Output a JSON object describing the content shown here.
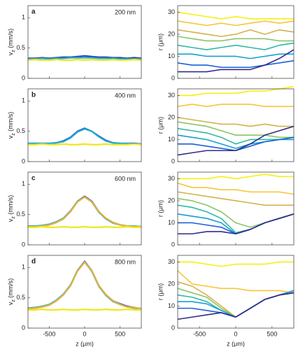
{
  "chart_data": [
    {
      "type": "line",
      "label": "a",
      "annotation": "200 nm",
      "ylabel": {
        "main": "v",
        "sub": "z",
        "rest": " (mm/s)"
      },
      "xlim": [
        -800,
        800
      ],
      "xticks": [
        -500,
        0,
        500
      ],
      "ylim": [
        0,
        1.2
      ],
      "yticks": [
        0,
        0.5,
        1
      ],
      "x": [
        -800,
        -700,
        -600,
        -500,
        -400,
        -300,
        -200,
        -100,
        0,
        100,
        200,
        300,
        400,
        500,
        600,
        700,
        800
      ],
      "series": [
        {
          "color": "#2a3fb8",
          "values": [
            0.33,
            0.33,
            0.34,
            0.33,
            0.34,
            0.35,
            0.35,
            0.36,
            0.37,
            0.36,
            0.35,
            0.35,
            0.34,
            0.34,
            0.33,
            0.34,
            0.33
          ]
        },
        {
          "color": "#1eaad2",
          "values": [
            0.32,
            0.32,
            0.33,
            0.32,
            0.33,
            0.33,
            0.34,
            0.34,
            0.34,
            0.34,
            0.33,
            0.33,
            0.33,
            0.32,
            0.32,
            0.32,
            0.32
          ]
        },
        {
          "color": "#f0e81a",
          "values": [
            0.3,
            0.31,
            0.3,
            0.3,
            0.31,
            0.3,
            0.3,
            0.31,
            0.3,
            0.31,
            0.3,
            0.3,
            0.31,
            0.3,
            0.3,
            0.31,
            0.3
          ]
        }
      ]
    },
    {
      "type": "line",
      "ylabel": "r (μm)",
      "xlim": [
        -800,
        800
      ],
      "xticks": [
        -500,
        0,
        500
      ],
      "ylim": [
        0,
        33
      ],
      "yticks": [
        0,
        10,
        20,
        30
      ],
      "x": [
        -800,
        -600,
        -400,
        -200,
        0,
        200,
        400,
        600,
        800
      ],
      "series": [
        {
          "color": "#f5f010",
          "values": [
            30,
            29,
            28,
            27,
            28,
            27,
            27,
            27,
            27
          ]
        },
        {
          "color": "#f7c53a",
          "values": [
            26,
            25,
            24,
            25,
            24,
            25,
            26,
            25,
            26
          ]
        },
        {
          "color": "#d3b34a",
          "values": [
            22,
            21,
            20,
            19,
            20,
            22,
            20,
            22,
            21
          ]
        },
        {
          "color": "#8cc46a",
          "values": [
            19,
            18,
            17,
            17,
            18,
            18,
            18,
            17,
            17
          ]
        },
        {
          "color": "#2fb9a6",
          "values": [
            15,
            14,
            13,
            14,
            15,
            14,
            13,
            15,
            16
          ]
        },
        {
          "color": "#14a0d4",
          "values": [
            11,
            11,
            10,
            10,
            10,
            9,
            10,
            11,
            11
          ]
        },
        {
          "color": "#1a62d8",
          "values": [
            7,
            6,
            6,
            5,
            5,
            5,
            6,
            7,
            8
          ]
        },
        {
          "color": "#352a87",
          "values": [
            3,
            3,
            3,
            4,
            4,
            4,
            6,
            9,
            13
          ]
        }
      ]
    },
    {
      "type": "line",
      "label": "b",
      "annotation": "400 nm",
      "ylabel": {
        "main": "v",
        "sub": "z",
        "rest": " (mm/s)"
      },
      "xlim": [
        -800,
        800
      ],
      "xticks": [
        -500,
        0,
        500
      ],
      "ylim": [
        0,
        1.2
      ],
      "yticks": [
        0,
        0.5,
        1
      ],
      "x": [
        -800,
        -700,
        -600,
        -500,
        -400,
        -300,
        -200,
        -100,
        0,
        100,
        200,
        300,
        400,
        500,
        600,
        700,
        800
      ],
      "series": [
        {
          "color": "#2a3fb8",
          "values": [
            0.3,
            0.3,
            0.3,
            0.3,
            0.31,
            0.34,
            0.4,
            0.5,
            0.55,
            0.5,
            0.42,
            0.35,
            0.31,
            0.3,
            0.3,
            0.3,
            0.29
          ]
        },
        {
          "color": "#1eaad2",
          "values": [
            0.3,
            0.3,
            0.3,
            0.3,
            0.31,
            0.33,
            0.39,
            0.49,
            0.54,
            0.5,
            0.41,
            0.34,
            0.31,
            0.3,
            0.3,
            0.29,
            0.29
          ]
        },
        {
          "color": "#f0e81a",
          "values": [
            0.28,
            0.28,
            0.29,
            0.28,
            0.28,
            0.29,
            0.28,
            0.28,
            0.29,
            0.28,
            0.28,
            0.29,
            0.28,
            0.28,
            0.28,
            0.29,
            0.28
          ]
        }
      ]
    },
    {
      "type": "line",
      "ylabel": "r (μm)",
      "xlim": [
        -800,
        800
      ],
      "xticks": [
        -500,
        0,
        500
      ],
      "ylim": [
        0,
        33
      ],
      "yticks": [
        0,
        10,
        20,
        30
      ],
      "x": [
        -800,
        -600,
        -400,
        -200,
        0,
        200,
        400,
        600,
        800
      ],
      "series": [
        {
          "color": "#f5f010",
          "values": [
            30,
            30,
            31,
            31,
            31,
            32,
            32,
            33,
            34
          ]
        },
        {
          "color": "#f7c53a",
          "values": [
            25,
            26,
            25,
            26,
            26,
            26,
            25,
            25,
            25
          ]
        },
        {
          "color": "#d3b34a",
          "values": [
            20,
            19,
            18,
            17,
            17,
            16,
            17,
            16,
            16
          ]
        },
        {
          "color": "#8cc46a",
          "values": [
            18,
            17,
            16,
            14,
            12,
            12,
            12,
            11,
            11
          ]
        },
        {
          "color": "#2fb9a6",
          "values": [
            15,
            14,
            13,
            11,
            8,
            10,
            10,
            10,
            11
          ]
        },
        {
          "color": "#14a0d4",
          "values": [
            12,
            11,
            10,
            8,
            6,
            8,
            9,
            10,
            10
          ]
        },
        {
          "color": "#1a62d8",
          "values": [
            8,
            8,
            7,
            6,
            5,
            7,
            9,
            10,
            11
          ]
        },
        {
          "color": "#352a87",
          "values": [
            3,
            4,
            5,
            5,
            5,
            8,
            12,
            14,
            16
          ]
        }
      ]
    },
    {
      "type": "line",
      "label": "c",
      "annotation": "600 nm",
      "ylabel": {
        "main": "v",
        "sub": "z",
        "rest": " (mm/s)"
      },
      "xlim": [
        -800,
        800
      ],
      "xticks": [
        -500,
        0,
        500
      ],
      "ylim": [
        0,
        1.2
      ],
      "yticks": [
        0,
        0.5,
        1
      ],
      "x": [
        -800,
        -700,
        -600,
        -500,
        -400,
        -300,
        -200,
        -100,
        0,
        100,
        200,
        300,
        400,
        500,
        600,
        700,
        800
      ],
      "series": [
        {
          "color": "#2a3fb8",
          "values": [
            0.3,
            0.31,
            0.31,
            0.33,
            0.37,
            0.43,
            0.55,
            0.72,
            0.8,
            0.72,
            0.55,
            0.43,
            0.37,
            0.33,
            0.31,
            0.3,
            0.3
          ]
        },
        {
          "color": "#1eaad2",
          "values": [
            0.31,
            0.31,
            0.32,
            0.34,
            0.38,
            0.44,
            0.56,
            0.72,
            0.79,
            0.71,
            0.54,
            0.43,
            0.36,
            0.33,
            0.31,
            0.31,
            0.3
          ]
        },
        {
          "color": "#e8b23a",
          "values": [
            0.3,
            0.3,
            0.31,
            0.33,
            0.37,
            0.43,
            0.55,
            0.71,
            0.79,
            0.71,
            0.55,
            0.44,
            0.37,
            0.33,
            0.31,
            0.3,
            0.3
          ]
        },
        {
          "color": "#f0e81a",
          "values": [
            0.29,
            0.29,
            0.3,
            0.29,
            0.29,
            0.3,
            0.29,
            0.29,
            0.3,
            0.29,
            0.29,
            0.3,
            0.29,
            0.29,
            0.3,
            0.29,
            0.29
          ]
        }
      ]
    },
    {
      "type": "line",
      "ylabel": "r (μm)",
      "xlim": [
        -800,
        800
      ],
      "xticks": [
        -500,
        0,
        500
      ],
      "ylim": [
        0,
        33
      ],
      "yticks": [
        0,
        10,
        20,
        30
      ],
      "x": [
        -800,
        -600,
        -400,
        -200,
        0,
        200,
        400,
        600,
        800
      ],
      "series": [
        {
          "color": "#f5f010",
          "values": [
            30,
            30,
            30,
            31,
            30,
            31,
            32,
            31,
            31
          ]
        },
        {
          "color": "#f7c53a",
          "values": [
            28,
            26,
            26,
            25,
            25,
            24,
            24,
            24,
            23
          ]
        },
        {
          "color": "#d3b34a",
          "values": [
            24,
            23,
            22,
            21,
            20,
            19,
            18,
            18,
            18
          ]
        },
        {
          "color": "#8cc46a",
          "values": [
            21,
            20,
            18,
            15,
            10,
            8,
            10,
            12,
            14
          ]
        },
        {
          "color": "#2fb9a6",
          "values": [
            18,
            17,
            15,
            12,
            5.5,
            7,
            10,
            12,
            14
          ]
        },
        {
          "color": "#14a0d4",
          "values": [
            14,
            13,
            12,
            10,
            5,
            7,
            10,
            12,
            14
          ]
        },
        {
          "color": "#1a62d8",
          "values": [
            10,
            10,
            9,
            8,
            5,
            7,
            10,
            12,
            14
          ]
        },
        {
          "color": "#352a87",
          "values": [
            5,
            5,
            6,
            6,
            5,
            7,
            10,
            12,
            14
          ]
        }
      ]
    },
    {
      "type": "line",
      "label": "d",
      "annotation": "800 nm",
      "ylabel": {
        "main": "v",
        "sub": "z",
        "rest": " (mm/s)"
      },
      "xlabel": "z (μm)",
      "xlim": [
        -800,
        800
      ],
      "xticks": [
        -500,
        0,
        500
      ],
      "ylim": [
        0,
        1.2
      ],
      "yticks": [
        0,
        0.5,
        1
      ],
      "x": [
        -800,
        -700,
        -600,
        -500,
        -400,
        -300,
        -200,
        -100,
        0,
        100,
        200,
        300,
        400,
        500,
        600,
        700,
        800
      ],
      "series": [
        {
          "color": "#2a3fb8",
          "values": [
            0.32,
            0.33,
            0.35,
            0.38,
            0.45,
            0.55,
            0.7,
            0.95,
            1.1,
            0.95,
            0.7,
            0.55,
            0.45,
            0.4,
            0.36,
            0.34,
            0.32
          ]
        },
        {
          "color": "#1eaad2",
          "values": [
            0.33,
            0.34,
            0.36,
            0.39,
            0.46,
            0.56,
            0.71,
            0.95,
            1.09,
            0.94,
            0.69,
            0.54,
            0.44,
            0.39,
            0.35,
            0.33,
            0.32
          ]
        },
        {
          "color": "#e8b23a",
          "values": [
            0.32,
            0.33,
            0.35,
            0.38,
            0.45,
            0.55,
            0.7,
            0.94,
            1.09,
            0.95,
            0.7,
            0.55,
            0.45,
            0.39,
            0.35,
            0.34,
            0.32
          ]
        },
        {
          "color": "#f0e81a",
          "values": [
            0.3,
            0.3,
            0.31,
            0.3,
            0.3,
            0.31,
            0.3,
            0.3,
            0.31,
            0.3,
            0.3,
            0.31,
            0.3,
            0.3,
            0.31,
            0.3,
            0.3
          ]
        }
      ]
    },
    {
      "type": "line",
      "ylabel": "r (μm)",
      "xlabel": "z (μm)",
      "xlim": [
        -800,
        800
      ],
      "xticks": [
        -500,
        0,
        500
      ],
      "ylim": [
        0,
        33
      ],
      "yticks": [
        0,
        10,
        20,
        30
      ],
      "x": [
        -800,
        -600,
        -400,
        -200,
        0,
        200,
        400,
        600,
        800
      ],
      "series": [
        {
          "color": "#f5f010",
          "values": [
            30,
            30,
            29,
            28,
            29,
            29,
            29,
            30,
            30
          ]
        },
        {
          "color": "#f7c53a",
          "values": [
            26,
            20,
            19,
            18,
            18,
            17,
            17,
            17,
            16
          ]
        },
        {
          "color": "#d3b34a",
          "values": [
            21,
            19,
            15,
            10,
            5,
            9,
            13,
            15,
            17
          ]
        },
        {
          "color": "#8cc46a",
          "values": [
            18,
            16,
            14,
            9,
            5,
            9,
            13,
            15,
            17
          ]
        },
        {
          "color": "#2fb9a6",
          "values": [
            15,
            14,
            12,
            8,
            5,
            9,
            13,
            15,
            17
          ]
        },
        {
          "color": "#14a0d4",
          "values": [
            12,
            12,
            11,
            8,
            5,
            9,
            13,
            15,
            17
          ]
        },
        {
          "color": "#1a62d8",
          "values": [
            9,
            9,
            8,
            7,
            5,
            9,
            13,
            15,
            16
          ]
        },
        {
          "color": "#352a87",
          "values": [
            4,
            5,
            6,
            7,
            5,
            9,
            13,
            15,
            16
          ]
        }
      ]
    }
  ]
}
